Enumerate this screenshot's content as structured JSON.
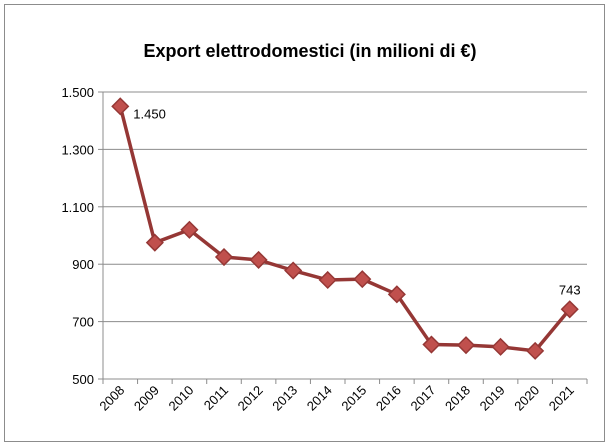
{
  "chart_data": {
    "type": "line",
    "title": "Export elettrodomestici (in milioni di €)",
    "xlabel": "",
    "ylabel": "",
    "categories": [
      "2008",
      "2009",
      "2010",
      "2011",
      "2012",
      "2013",
      "2014",
      "2015",
      "2016",
      "2017",
      "2018",
      "2019",
      "2020",
      "2021"
    ],
    "series": [
      {
        "values": [
          1450,
          975,
          1020,
          925,
          915,
          878,
          845,
          848,
          795,
          620,
          618,
          612,
          598,
          743
        ]
      }
    ],
    "ylim": [
      500,
      1500
    ],
    "yticks": [
      500,
      700,
      900,
      1100,
      1300,
      1500
    ],
    "ytick_labels": [
      "500",
      "700",
      "900",
      "1.100",
      "1.300",
      "1.500"
    ],
    "data_labels": [
      {
        "index": 0,
        "text": "1.450"
      },
      {
        "index": 13,
        "text": "743"
      }
    ],
    "grid": true,
    "legend": "none",
    "colors": {
      "line": "#953735",
      "marker_fill": "#c0504d",
      "marker_stroke": "#953735",
      "grid": "#8c8c8c"
    }
  }
}
